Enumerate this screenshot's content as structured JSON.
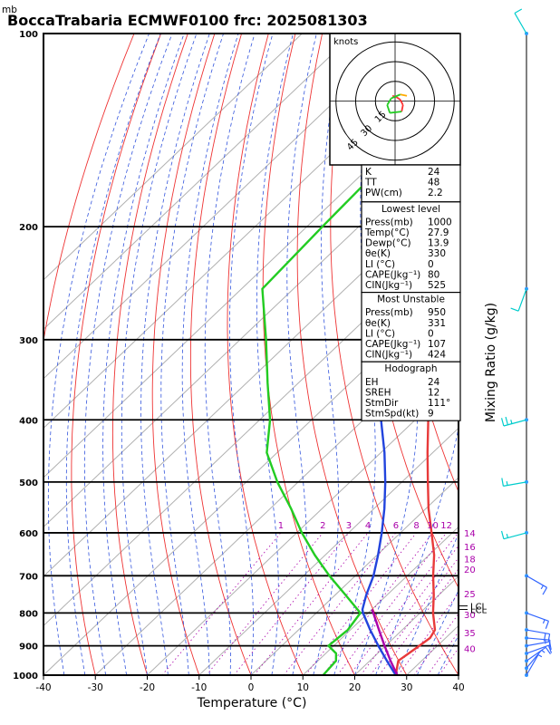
{
  "chart_data": {
    "type": "line",
    "title": "BoccaTrabaria ECMWF0100 frc: 2025081303",
    "pressure_unit_label": "mb",
    "xlabel": "Temperature (°C)",
    "right_label": "Mixing Ratio (g/kg)",
    "xlim": [
      -40,
      40
    ],
    "plim": [
      1000,
      100
    ],
    "x_ticks": [
      -40,
      -30,
      -20,
      -10,
      0,
      10,
      20,
      30,
      40
    ],
    "p_ticks": [
      1000,
      900,
      800,
      700,
      600,
      500,
      400,
      300,
      200,
      100
    ],
    "mixing_ratio_labels": [
      "1",
      "2",
      "3",
      "4",
      "6",
      "8",
      "10",
      "12",
      "14",
      "16",
      "18",
      "20",
      "25",
      "30",
      "35",
      "40"
    ],
    "mixing_ratio_values": [
      1,
      2,
      3,
      4,
      6,
      8,
      10,
      12,
      14,
      16,
      18,
      20,
      25,
      30,
      35,
      40
    ],
    "lcl_labels": [
      "LCL",
      "LCL"
    ],
    "lcl_pressures": [
      790,
      780
    ],
    "series": [
      {
        "key": "temperature",
        "color": "#e83a3a",
        "p": [
          1000,
          950,
          925,
          900,
          875,
          850,
          800,
          750,
          700,
          650,
          600,
          550,
          500,
          450,
          400,
          350,
          300,
          250,
          200,
          150,
          100
        ],
        "t": [
          27.9,
          25.5,
          26.0,
          26.5,
          27.0,
          26.3,
          22.5,
          19.0,
          15.0,
          11.0,
          6.0,
          0.5,
          -5.0,
          -11.0,
          -17.5,
          -24.0,
          -32.0,
          -41.0,
          -50.0,
          -59.0,
          -70.0
        ]
      },
      {
        "key": "dewpoint",
        "color": "#22cc22",
        "p": [
          1000,
          950,
          925,
          900,
          850,
          800,
          750,
          700,
          650,
          600,
          550,
          500,
          450,
          400,
          350,
          300,
          250,
          200,
          150,
          100
        ],
        "t": [
          13.9,
          13.5,
          12.0,
          9.0,
          9.5,
          8.5,
          2.0,
          -5.0,
          -12.0,
          -19.0,
          -26.0,
          -34.0,
          -42.0,
          -48.0,
          -56.0,
          -65.0,
          -76.0,
          -77.0,
          -78.0,
          -80.0
        ]
      },
      {
        "key": "parcel",
        "color": "#2244dd",
        "p": [
          1000,
          950,
          900,
          850,
          800,
          790,
          750,
          700,
          650,
          600,
          550,
          500,
          450,
          400,
          350,
          300,
          250,
          200,
          150,
          100
        ],
        "t": [
          27.9,
          23.3,
          18.6,
          13.8,
          9.0,
          8.2,
          6.0,
          3.5,
          0.2,
          -3.6,
          -8.0,
          -13.2,
          -19.3,
          -26.6,
          -35.0,
          -44.8,
          -56.2,
          -69.0,
          -84.0,
          -100.0
        ]
      },
      {
        "key": "virtual_parcel",
        "color": "#aa00aa",
        "p": [
          1000,
          950,
          900,
          850,
          800,
          790
        ],
        "t": [
          28.2,
          24.0,
          19.8,
          15.5,
          11.0,
          10.0
        ]
      }
    ],
    "wind_barbs": [
      {
        "p": 1000,
        "dir": 30,
        "spd": 5
      },
      {
        "p": 975,
        "dir": 40,
        "spd": 5
      },
      {
        "p": 950,
        "dir": 55,
        "spd": 10
      },
      {
        "p": 925,
        "dir": 70,
        "spd": 10
      },
      {
        "p": 900,
        "dir": 80,
        "spd": 10
      },
      {
        "p": 875,
        "dir": 95,
        "spd": 15
      },
      {
        "p": 850,
        "dir": 100,
        "spd": 20
      },
      {
        "p": 800,
        "dir": 110,
        "spd": 15
      },
      {
        "p": 700,
        "dir": 120,
        "spd": 15
      },
      {
        "p": 600,
        "dir": 255,
        "spd": 15
      },
      {
        "p": 500,
        "dir": 260,
        "spd": 15
      },
      {
        "p": 400,
        "dir": 255,
        "spd": 25
      },
      {
        "p": 250,
        "dir": 200,
        "spd": 10
      },
      {
        "p": 100,
        "dir": 330,
        "spd": 10
      }
    ],
    "hodograph": {
      "unit_label": "knots",
      "ring_labels": [
        "15",
        "30",
        "45"
      ],
      "ring_values": [
        15,
        30,
        45
      ],
      "points": [
        [
          -2,
          4
        ],
        [
          1,
          3
        ],
        [
          4,
          1
        ],
        [
          6,
          -3
        ],
        [
          5,
          -8
        ],
        [
          -4,
          -9
        ],
        [
          -6,
          -3
        ],
        [
          -3,
          2
        ],
        [
          4,
          5
        ],
        [
          9,
          4
        ]
      ],
      "colors": [
        "#ff3333",
        "#22cc22",
        "#ffaa00"
      ]
    },
    "indices": {
      "top": [
        {
          "label": "K",
          "value": "24"
        },
        {
          "label": "TT",
          "value": "48"
        },
        {
          "label": "PW(cm)",
          "value": "2.2"
        }
      ],
      "lowest_title": "Lowest level",
      "lowest": [
        {
          "label": "Press(mb)",
          "value": "1000"
        },
        {
          "label": "Temp(°C)",
          "value": "27.9"
        },
        {
          "label": "Dewp(°C)",
          "value": "13.9"
        },
        {
          "label": "θe(K)",
          "value": "330"
        },
        {
          "label": "LI (°C)",
          "value": "0"
        },
        {
          "label": "CAPE(Jkg⁻¹)",
          "value": "80"
        },
        {
          "label": "CIN(Jkg⁻¹)",
          "value": "525"
        }
      ],
      "unstable_title": "Most Unstable",
      "unstable": [
        {
          "label": "Press(mb)",
          "value": "950"
        },
        {
          "label": "θe(K)",
          "value": "331"
        },
        {
          "label": "LI (°C)",
          "value": "0"
        },
        {
          "label": "CAPE(Jkg⁻¹)",
          "value": "107"
        },
        {
          "label": "CIN(Jkg⁻¹)",
          "value": "424"
        }
      ],
      "hodo_title": "Hodograph",
      "hodo": [
        {
          "label": "EH",
          "value": "24"
        },
        {
          "label": "SREH",
          "value": "12"
        },
        {
          "label": "StmDir",
          "value": "111°"
        },
        {
          "label": "StmSpd(kt)",
          "value": "9"
        }
      ]
    }
  }
}
